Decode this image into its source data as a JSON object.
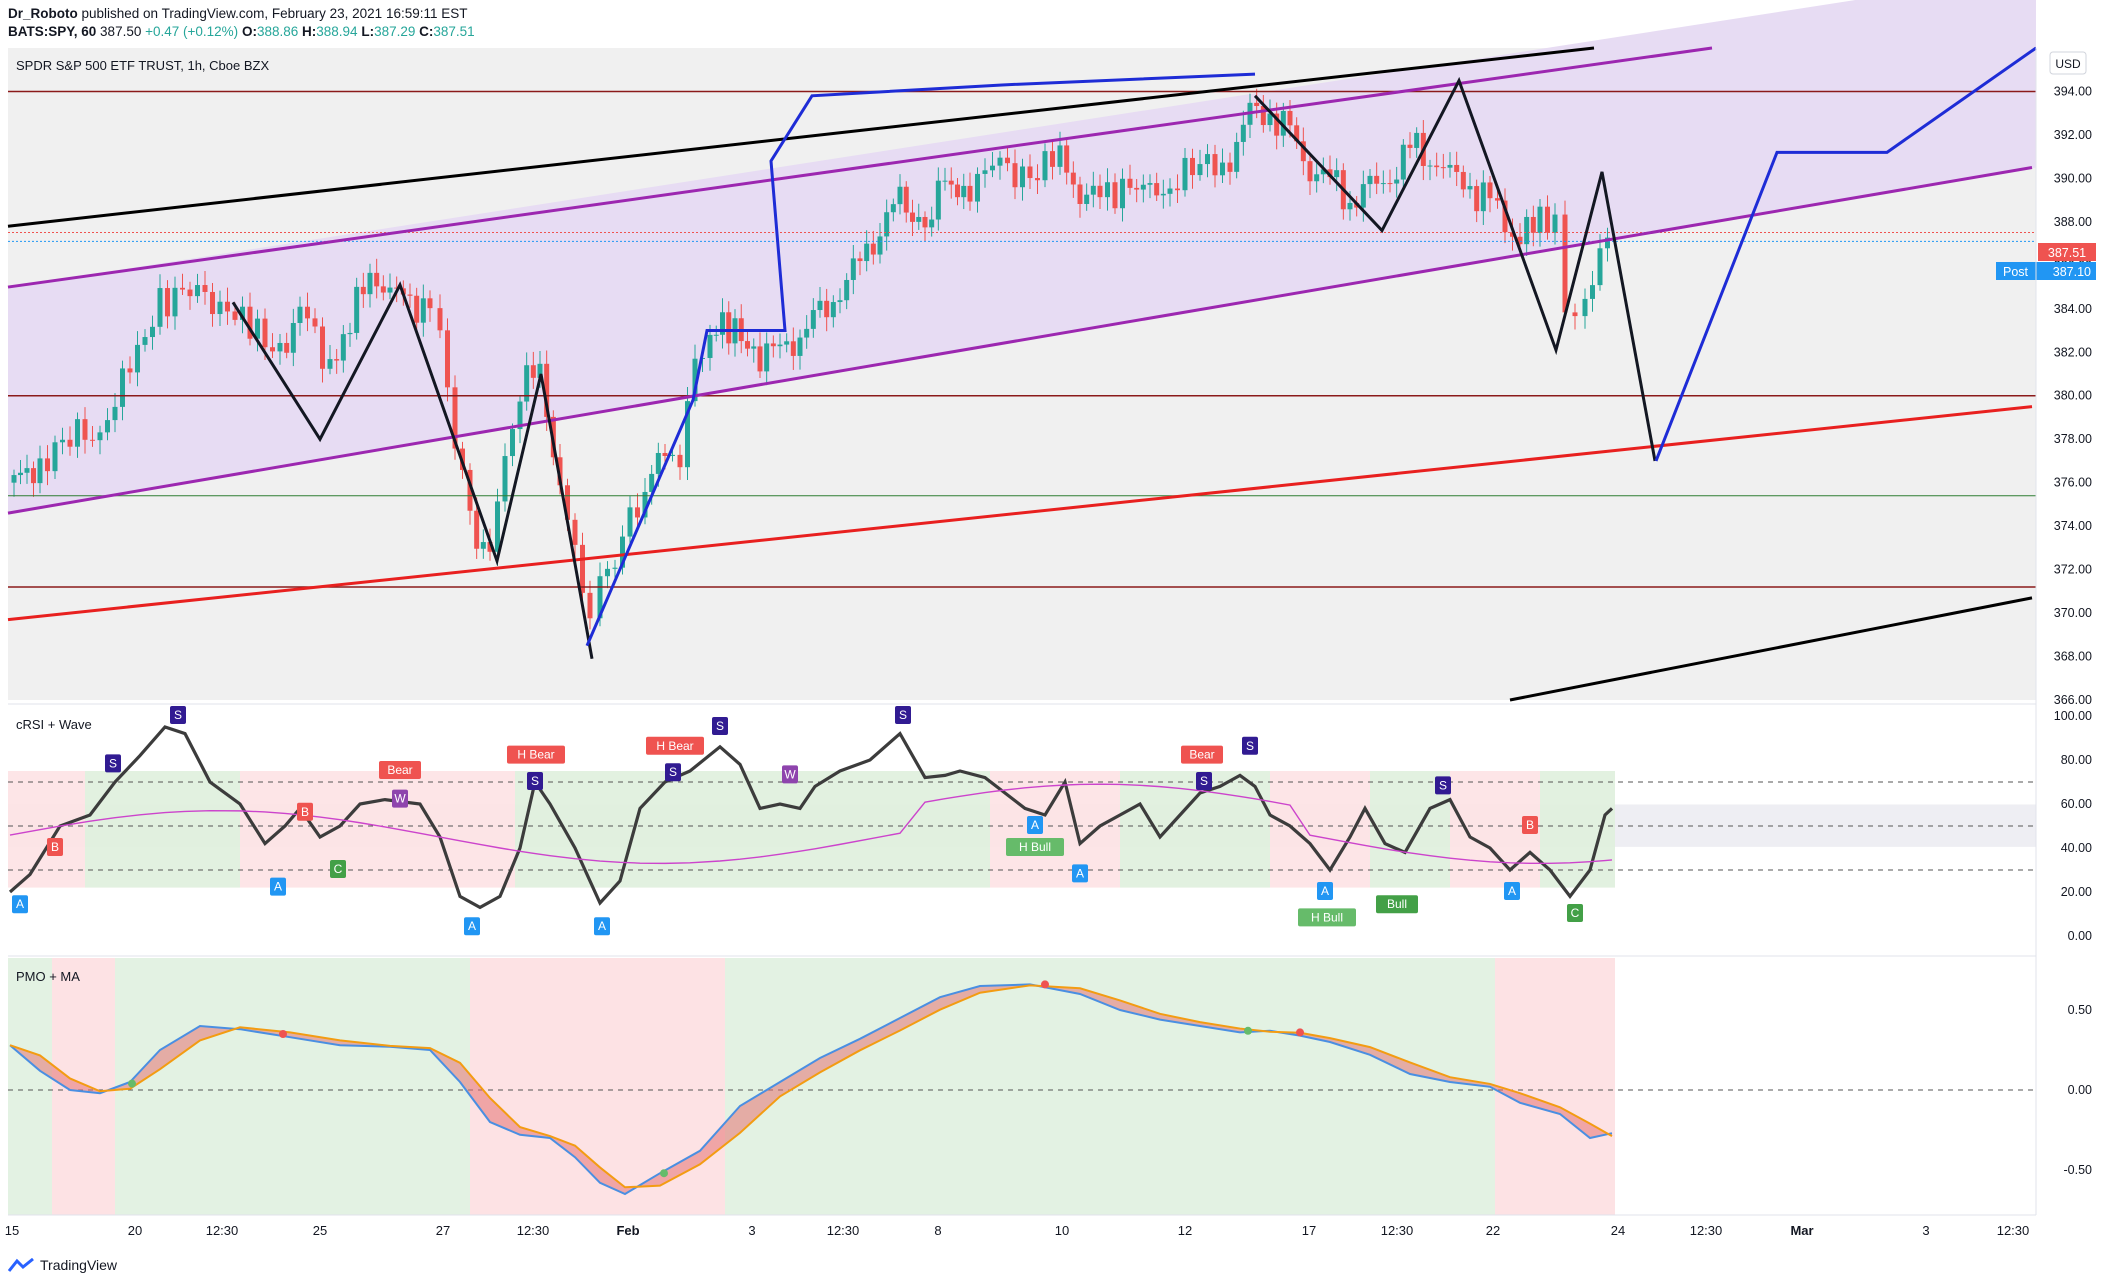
{
  "header": {
    "author": "Dr_Roboto",
    "published": " published on TradingView.com, February 23, 2021 16:59:11 EST",
    "symbol": "BATS:SPY, 60",
    "last": "387.50",
    "change": "+0.47 (+0.12%)",
    "o_label": "O:",
    "o": "388.86",
    "h_label": "H:",
    "h": "388.94",
    "l_label": "L:",
    "l": "387.29",
    "c_label": "C:",
    "c": "387.51"
  },
  "main_panel": {
    "title": "SPDR S&P 500 ETF TRUST, 1h, Cboe BZX",
    "currency": "USD",
    "price_tag": "387.51",
    "post_label": "Post",
    "post_price": "387.10"
  },
  "rsi_panel": {
    "title": "cRSI + Wave"
  },
  "pmo_panel": {
    "title": "PMO + MA"
  },
  "footer": {
    "brand": "TradingView"
  },
  "colors": {
    "up": "#26a69a",
    "down": "#ef5350",
    "channel": "#9c27b0",
    "support": "#e8201f",
    "resistance": "#8b1a1a",
    "wave": "#131722",
    "projection": "#1e2cd6",
    "pmo": "#4a8fe2",
    "pmo_ma": "#f39c12",
    "green_zone": "#e3f2e3",
    "red_zone": "#fde2e4"
  },
  "chart_data": [
    {
      "type": "candlestick",
      "title": "SPDR S&P 500 ETF TRUST, 1h, Cboe BZX",
      "y_range": [
        366,
        396
      ],
      "y_ticks": [
        "366.00",
        "368.00",
        "370.00",
        "372.00",
        "374.00",
        "376.00",
        "378.00",
        "380.00",
        "382.00",
        "384.00",
        "386.00",
        "388.00",
        "390.00",
        "392.00",
        "394.00",
        "396.00"
      ],
      "x_ticks": [
        "15",
        "20",
        "12:30",
        "25",
        "27",
        "12:30",
        "Feb",
        "3",
        "12:30",
        "8",
        "10",
        "12",
        "17",
        "12:30",
        "22",
        "24",
        "12:30",
        "Mar",
        "3",
        "12:30"
      ],
      "horizontal_levels": [
        394.0,
        380.0,
        375.4,
        371.2
      ],
      "wave_pivots": [
        384.3,
        378.0,
        385.1,
        372.4,
        381.0,
        367.9
      ],
      "wave_pivots_2": [
        393.8,
        387.6,
        394.5,
        382.1,
        390.3,
        377.0
      ],
      "projection": [
        368.5,
        379.8,
        383.0,
        390.8,
        393.8,
        377.0,
        391.2,
        391.2,
        396.0
      ],
      "last_price": 387.51,
      "post_price": 387.1
    },
    {
      "type": "line",
      "title": "cRSI + Wave",
      "y_ticks": [
        "0.00",
        "20.00",
        "40.00",
        "60.00",
        "80.00",
        "100.00"
      ],
      "levels": [
        70,
        50,
        30
      ],
      "labels": [
        "A",
        "B",
        "S",
        "A",
        "B",
        "C",
        "Bear",
        "W",
        "S",
        "A",
        "H Bear",
        "S",
        "A",
        "Bull",
        "H Bear",
        "S",
        "W",
        "S",
        "A",
        "H Bull",
        "A",
        "Bear",
        "S",
        "S",
        "A",
        "H Bull",
        "Bull",
        "S",
        "A",
        "B",
        "C"
      ]
    },
    {
      "type": "area",
      "title": "PMO + MA",
      "y_ticks": [
        "0.50",
        "0.00",
        "-0.50"
      ],
      "levels": [
        0
      ]
    }
  ]
}
